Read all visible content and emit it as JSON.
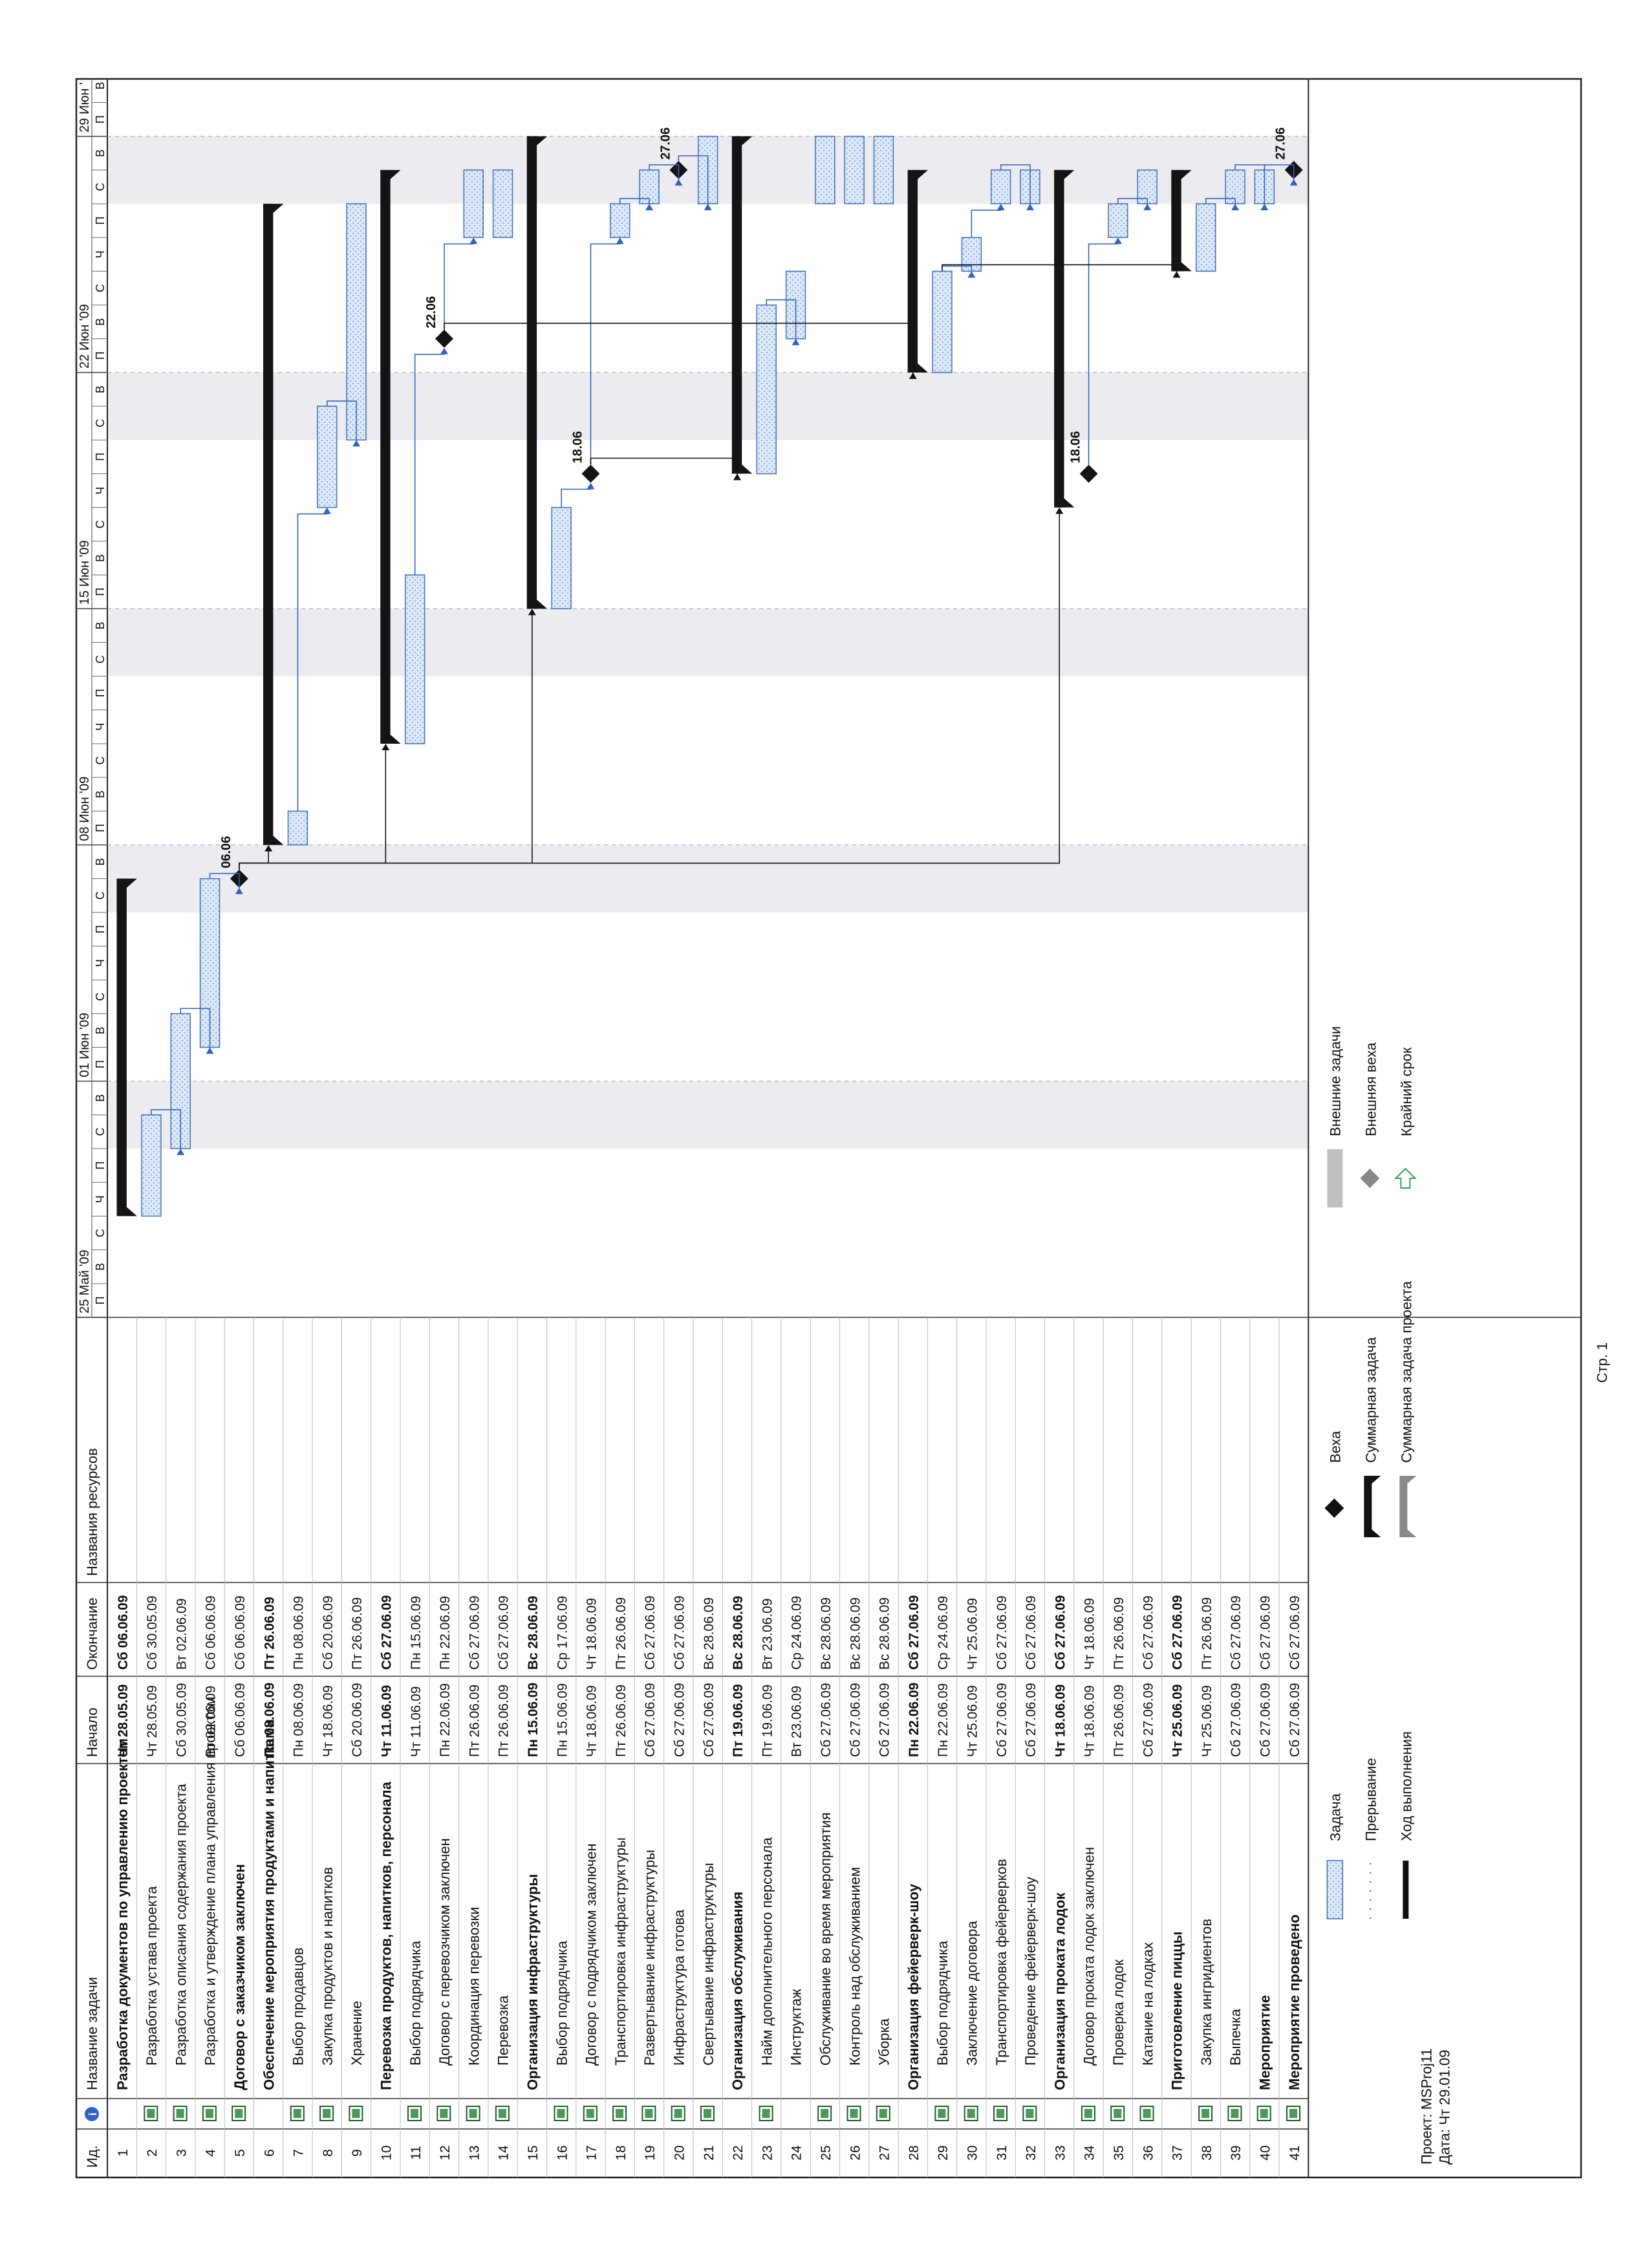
{
  "table": {
    "headers": {
      "id": "Ид.",
      "info": "i",
      "name": "Название задачи",
      "start": "Начало",
      "finish": "Окончание",
      "resources": "Названия ресурсов"
    },
    "rows": [
      {
        "id": "1",
        "name": "Разработка документов по управлению проектом",
        "start": "Чт 28.05.09",
        "finish": "Сб 06.06.09",
        "level": 0,
        "type": "summary",
        "icon": false
      },
      {
        "id": "2",
        "name": "Разработка устава проекта",
        "start": "Чт 28.05.09",
        "finish": "Сб 30.05.09",
        "level": 1,
        "type": "task",
        "icon": true
      },
      {
        "id": "3",
        "name": "Разработка описания содержания проекта",
        "start": "Сб 30.05.09",
        "finish": "Вт 02.06.09",
        "level": 1,
        "type": "task",
        "icon": true
      },
      {
        "id": "4",
        "name": "Разработка и утверждение плана управления проектом",
        "start": "Вт 02.06.09",
        "finish": "Сб 06.06.09",
        "level": 1,
        "type": "task",
        "icon": true
      },
      {
        "id": "5",
        "name": "Договор с заказчиком заключен",
        "start": "Сб 06.06.09",
        "finish": "Сб 06.06.09",
        "level": 0,
        "type": "milestone",
        "icon": true
      },
      {
        "id": "6",
        "name": "Обеспечение мероприятия продуктами и напитками",
        "start": "Пн 08.06.09",
        "finish": "Пт 26.06.09",
        "level": 0,
        "type": "summary",
        "icon": false
      },
      {
        "id": "7",
        "name": "Выбор продавцов",
        "start": "Пн 08.06.09",
        "finish": "Пн 08.06.09",
        "level": 1,
        "type": "task",
        "icon": true
      },
      {
        "id": "8",
        "name": "Закупка продуктов и напитков",
        "start": "Чт 18.06.09",
        "finish": "Сб 20.06.09",
        "level": 1,
        "type": "task",
        "icon": true
      },
      {
        "id": "9",
        "name": "Хранение",
        "start": "Сб 20.06.09",
        "finish": "Пт 26.06.09",
        "level": 1,
        "type": "task",
        "icon": true
      },
      {
        "id": "10",
        "name": "Перевозка продуктов, напитков, персонала",
        "start": "Чт 11.06.09",
        "finish": "Сб 27.06.09",
        "level": 0,
        "type": "summary",
        "icon": false
      },
      {
        "id": "11",
        "name": "Выбор подрядчика",
        "start": "Чт 11.06.09",
        "finish": "Пн 15.06.09",
        "level": 1,
        "type": "task",
        "icon": true
      },
      {
        "id": "12",
        "name": "Договор с перевозчиком заключен",
        "start": "Пн 22.06.09",
        "finish": "Пн 22.06.09",
        "level": 1,
        "type": "milestone",
        "icon": true
      },
      {
        "id": "13",
        "name": "Координация перевозки",
        "start": "Пт 26.06.09",
        "finish": "Сб 27.06.09",
        "level": 1,
        "type": "task",
        "icon": true
      },
      {
        "id": "14",
        "name": "Перевозка",
        "start": "Пт 26.06.09",
        "finish": "Сб 27.06.09",
        "level": 1,
        "type": "task",
        "icon": true
      },
      {
        "id": "15",
        "name": "Организация инфраструктуры",
        "start": "Пн 15.06.09",
        "finish": "Вс 28.06.09",
        "level": 0,
        "type": "summary",
        "icon": false
      },
      {
        "id": "16",
        "name": "Выбор подрядчика",
        "start": "Пн 15.06.09",
        "finish": "Ср 17.06.09",
        "level": 1,
        "type": "task",
        "icon": true
      },
      {
        "id": "17",
        "name": "Договор с подрядчиком заключен",
        "start": "Чт 18.06.09",
        "finish": "Чт 18.06.09",
        "level": 1,
        "type": "milestone",
        "icon": true
      },
      {
        "id": "18",
        "name": "Транспортировка инфраструктуры",
        "start": "Пт 26.06.09",
        "finish": "Пт 26.06.09",
        "level": 1,
        "type": "task",
        "icon": true
      },
      {
        "id": "19",
        "name": "Развертывание инфраструктуры",
        "start": "Сб 27.06.09",
        "finish": "Сб 27.06.09",
        "level": 1,
        "type": "task",
        "icon": true
      },
      {
        "id": "20",
        "name": "Инфраструктура готова",
        "start": "Сб 27.06.09",
        "finish": "Сб 27.06.09",
        "level": 1,
        "type": "milestone",
        "icon": true
      },
      {
        "id": "21",
        "name": "Свертывание инфраструктуры",
        "start": "Сб 27.06.09",
        "finish": "Вс 28.06.09",
        "level": 1,
        "type": "task",
        "icon": true
      },
      {
        "id": "22",
        "name": "Организация обслуживания",
        "start": "Пт 19.06.09",
        "finish": "Вс 28.06.09",
        "level": 0,
        "type": "summary",
        "icon": false
      },
      {
        "id": "23",
        "name": "Найм дополнительного персонала",
        "start": "Пт 19.06.09",
        "finish": "Вт 23.06.09",
        "level": 1,
        "type": "task",
        "icon": true
      },
      {
        "id": "24",
        "name": "Инструктаж",
        "start": "Вт 23.06.09",
        "finish": "Ср 24.06.09",
        "level": 1,
        "type": "task",
        "icon": false
      },
      {
        "id": "25",
        "name": "Обслуживание во время мероприятия",
        "start": "Сб 27.06.09",
        "finish": "Вс 28.06.09",
        "level": 1,
        "type": "task",
        "icon": true
      },
      {
        "id": "26",
        "name": "Контроль над обслуживанием",
        "start": "Сб 27.06.09",
        "finish": "Вс 28.06.09",
        "level": 1,
        "type": "task",
        "icon": true
      },
      {
        "id": "27",
        "name": "Уборка",
        "start": "Сб 27.06.09",
        "finish": "Вс 28.06.09",
        "level": 1,
        "type": "task",
        "icon": true
      },
      {
        "id": "28",
        "name": "Организация фейерверк-шоу",
        "start": "Пн 22.06.09",
        "finish": "Сб 27.06.09",
        "level": 0,
        "type": "summary",
        "icon": false
      },
      {
        "id": "29",
        "name": "Выбор подрядчика",
        "start": "Пн 22.06.09",
        "finish": "Ср 24.06.09",
        "level": 1,
        "type": "task",
        "icon": true
      },
      {
        "id": "30",
        "name": "Заключение договора",
        "start": "Чт 25.06.09",
        "finish": "Чт 25.06.09",
        "level": 1,
        "type": "task",
        "icon": true
      },
      {
        "id": "31",
        "name": "Транспортировка фейерверков",
        "start": "Сб 27.06.09",
        "finish": "Сб 27.06.09",
        "level": 1,
        "type": "task",
        "icon": true
      },
      {
        "id": "32",
        "name": "Проведение фейерверк-шоу",
        "start": "Сб 27.06.09",
        "finish": "Сб 27.06.09",
        "level": 1,
        "type": "task",
        "icon": true
      },
      {
        "id": "33",
        "name": "Организация проката лодок",
        "start": "Чт 18.06.09",
        "finish": "Сб 27.06.09",
        "level": 0,
        "type": "summary",
        "icon": false
      },
      {
        "id": "34",
        "name": "Договор проката лодок заключен",
        "start": "Чт 18.06.09",
        "finish": "Чт 18.06.09",
        "level": 1,
        "type": "milestone",
        "icon": true
      },
      {
        "id": "35",
        "name": "Проверка лодок",
        "start": "Пт 26.06.09",
        "finish": "Пт 26.06.09",
        "level": 1,
        "type": "task",
        "icon": true
      },
      {
        "id": "36",
        "name": "Катание на лодках",
        "start": "Сб 27.06.09",
        "finish": "Сб 27.06.09",
        "level": 1,
        "type": "task",
        "icon": true
      },
      {
        "id": "37",
        "name": "Приготовление пиццы",
        "start": "Чт 25.06.09",
        "finish": "Сб 27.06.09",
        "level": 0,
        "type": "summary",
        "icon": false
      },
      {
        "id": "38",
        "name": "Закупка ингридиентов",
        "start": "Чт 25.06.09",
        "finish": "Пт 26.06.09",
        "level": 1,
        "type": "task",
        "icon": true
      },
      {
        "id": "39",
        "name": "Выпечка",
        "start": "Сб 27.06.09",
        "finish": "Сб 27.06.09",
        "level": 1,
        "type": "task",
        "icon": true
      },
      {
        "id": "40",
        "name": "Мероприятие",
        "start": "Сб 27.06.09",
        "finish": "Сб 27.06.09",
        "level": 0,
        "type": "task",
        "icon": true
      },
      {
        "id": "41",
        "name": "Мероприятие проведено",
        "start": "Сб 27.06.09",
        "finish": "Сб 27.06.09",
        "level": 0,
        "type": "milestone",
        "icon": true
      }
    ]
  },
  "timescale": {
    "weeks": [
      "25 Май '09",
      "01 Июн '09",
      "08 Июн '09",
      "15 Июн '09",
      "22 Июн '09",
      "29 Июн '"
    ],
    "days": [
      "П",
      "В",
      "С",
      "Ч",
      "П",
      "С",
      "В"
    ]
  },
  "chart_data": {
    "type": "gantt",
    "time_axis_start": "25.05.09",
    "time_axis_end": "30.06.09",
    "tasks": [
      {
        "id": 1,
        "type": "summary",
        "start": "28.05.09",
        "end": "06.06.09"
      },
      {
        "id": 2,
        "type": "task",
        "start": "28.05.09",
        "end": "30.05.09"
      },
      {
        "id": 3,
        "type": "task",
        "start": "30.05.09",
        "end": "02.06.09"
      },
      {
        "id": 4,
        "type": "task",
        "start": "02.06.09",
        "end": "06.06.09"
      },
      {
        "id": 5,
        "type": "milestone",
        "date": "06.06.09",
        "label": "06.06"
      },
      {
        "id": 6,
        "type": "summary",
        "start": "08.06.09",
        "end": "26.06.09"
      },
      {
        "id": 7,
        "type": "task",
        "start": "08.06.09",
        "end": "08.06.09"
      },
      {
        "id": 8,
        "type": "task",
        "start": "18.06.09",
        "end": "20.06.09"
      },
      {
        "id": 9,
        "type": "task",
        "start": "20.06.09",
        "end": "26.06.09"
      },
      {
        "id": 10,
        "type": "summary",
        "start": "11.06.09",
        "end": "27.06.09"
      },
      {
        "id": 11,
        "type": "task",
        "start": "11.06.09",
        "end": "15.06.09"
      },
      {
        "id": 12,
        "type": "milestone",
        "date": "22.06.09",
        "label": "22.06"
      },
      {
        "id": 13,
        "type": "task",
        "start": "26.06.09",
        "end": "27.06.09"
      },
      {
        "id": 14,
        "type": "task",
        "start": "26.06.09",
        "end": "27.06.09"
      },
      {
        "id": 15,
        "type": "summary",
        "start": "15.06.09",
        "end": "28.06.09"
      },
      {
        "id": 16,
        "type": "task",
        "start": "15.06.09",
        "end": "17.06.09"
      },
      {
        "id": 17,
        "type": "milestone",
        "date": "18.06.09",
        "label": "18.06"
      },
      {
        "id": 18,
        "type": "task",
        "start": "26.06.09",
        "end": "26.06.09"
      },
      {
        "id": 19,
        "type": "task",
        "start": "27.06.09",
        "end": "27.06.09"
      },
      {
        "id": 20,
        "type": "milestone",
        "date": "27.06.09",
        "label": "27.06"
      },
      {
        "id": 21,
        "type": "task",
        "start": "27.06.09",
        "end": "28.06.09"
      },
      {
        "id": 22,
        "type": "summary",
        "start": "19.06.09",
        "end": "28.06.09"
      },
      {
        "id": 23,
        "type": "task",
        "start": "19.06.09",
        "end": "23.06.09"
      },
      {
        "id": 24,
        "type": "task",
        "start": "23.06.09",
        "end": "24.06.09"
      },
      {
        "id": 25,
        "type": "task",
        "start": "27.06.09",
        "end": "28.06.09"
      },
      {
        "id": 26,
        "type": "task",
        "start": "27.06.09",
        "end": "28.06.09"
      },
      {
        "id": 27,
        "type": "task",
        "start": "27.06.09",
        "end": "28.06.09"
      },
      {
        "id": 28,
        "type": "summary",
        "start": "22.06.09",
        "end": "27.06.09"
      },
      {
        "id": 29,
        "type": "task",
        "start": "22.06.09",
        "end": "24.06.09"
      },
      {
        "id": 30,
        "type": "task",
        "start": "25.06.09",
        "end": "25.06.09"
      },
      {
        "id": 31,
        "type": "task",
        "start": "27.06.09",
        "end": "27.06.09"
      },
      {
        "id": 32,
        "type": "task",
        "start": "27.06.09",
        "end": "27.06.09"
      },
      {
        "id": 33,
        "type": "summary",
        "start": "18.06.09",
        "end": "27.06.09"
      },
      {
        "id": 34,
        "type": "milestone",
        "date": "18.06.09",
        "label": "18.06"
      },
      {
        "id": 35,
        "type": "task",
        "start": "26.06.09",
        "end": "26.06.09"
      },
      {
        "id": 36,
        "type": "task",
        "start": "27.06.09",
        "end": "27.06.09"
      },
      {
        "id": 37,
        "type": "summary",
        "start": "25.06.09",
        "end": "27.06.09"
      },
      {
        "id": 38,
        "type": "task",
        "start": "25.06.09",
        "end": "26.06.09"
      },
      {
        "id": 39,
        "type": "task",
        "start": "27.06.09",
        "end": "27.06.09"
      },
      {
        "id": 40,
        "type": "task",
        "start": "27.06.09",
        "end": "27.06.09"
      },
      {
        "id": 41,
        "type": "milestone",
        "date": "27.06.09",
        "label": "27.06"
      }
    ],
    "legend": [
      "Задача",
      "Прерывание",
      "Ход выполнения",
      "Веха",
      "Суммарная задача",
      "Суммарная задача проекта",
      "Внешние задачи",
      "Внешняя веха",
      "Крайний срок"
    ]
  },
  "footer": {
    "project": "Проект: MSProj11",
    "date": "Дата: Чт 29.01.09",
    "page": "Стр. 1"
  },
  "legend": {
    "task": "Задача",
    "split": "Прерывание",
    "progress": "Ход выполнения",
    "milestone": "Веха",
    "summary": "Суммарная задача",
    "project_summary": "Суммарная задача проекта",
    "external_tasks": "Внешние задачи",
    "external_milestone": "Внешняя веха",
    "deadline": "Крайний срок"
  },
  "colors": {
    "task_fill": "#dbe8f8",
    "task_border": "#3d6fc0",
    "link": "#2f63c9",
    "summary": "#141414",
    "weekend": "#ececf0",
    "deadline": "#2ea44f",
    "external": "#c0c0c0"
  }
}
